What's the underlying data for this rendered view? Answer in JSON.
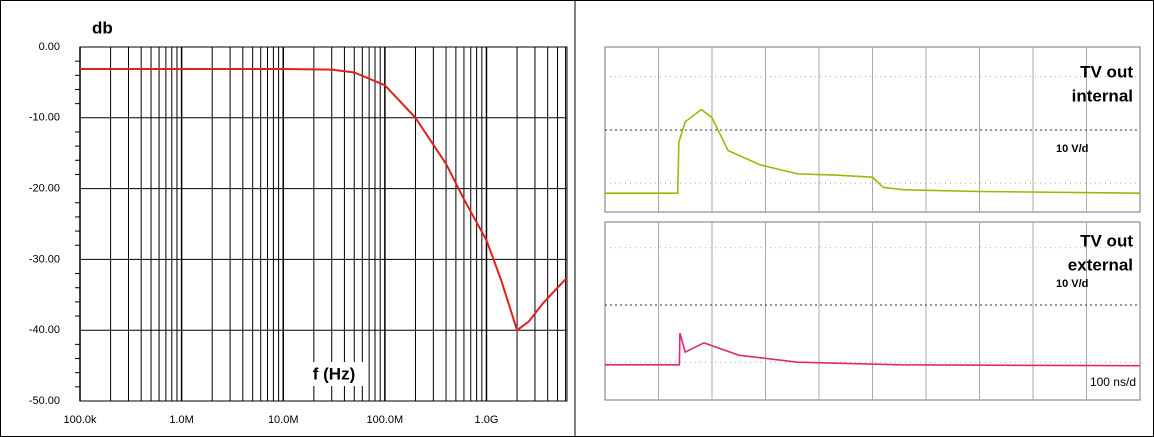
{
  "chart_data": [
    {
      "type": "line",
      "title": "db",
      "x_label": "f (Hz)",
      "xscale": "log",
      "grid": true,
      "x": [
        100000,
        1000000,
        10000000,
        30000000,
        50000000,
        100000000,
        200000000,
        400000000,
        600000000,
        1000000000,
        1400000000,
        2000000000,
        2600000000,
        3600000000,
        5000000000,
        6200000000
      ],
      "series": [
        {
          "color": "#e0201c",
          "values": [
            -3.1,
            -3.1,
            -3.1,
            -3.2,
            -3.6,
            -5.4,
            -10,
            -16.5,
            -21.5,
            -27.3,
            -33,
            -40,
            -38.8,
            -36.2,
            -34,
            -32.6
          ]
        }
      ],
      "xlim": [
        100000,
        6200000000
      ],
      "xticks": [
        {
          "value": 100000,
          "label": "100.0k"
        },
        {
          "value": 1000000,
          "label": "1.0M"
        },
        {
          "value": 10000000,
          "label": "10.0M"
        },
        {
          "value": 100000000,
          "label": "100.0M"
        },
        {
          "value": 1000000000,
          "label": "1.0G"
        }
      ],
      "ylim": [
        -50,
        0
      ],
      "yticks": [
        {
          "value": 0,
          "label": "0.00"
        },
        {
          "value": -10,
          "label": "-10.00"
        },
        {
          "value": -20,
          "label": "-20.00"
        },
        {
          "value": -30,
          "label": "-30.00"
        },
        {
          "value": -40,
          "label": "-40.00"
        },
        {
          "value": -50,
          "label": "-50.00"
        }
      ]
    },
    {
      "type": "line",
      "label": [
        "TV out",
        "internal"
      ],
      "scale": "10 V/d",
      "x": [
        0,
        1.36,
        1.38,
        1.5,
        1.8,
        2.0,
        2.3,
        2.9,
        3.6,
        4.3,
        5.0,
        5.2,
        5.6,
        7,
        10
      ],
      "series": [
        {
          "color": "#a7b300",
          "values": [
            -1.54,
            -1.54,
            -0.3,
            0.2,
            0.5,
            0.3,
            -0.5,
            -0.85,
            -1.07,
            -1.1,
            -1.15,
            -1.4,
            -1.46,
            -1.5,
            -1.54
          ]
        }
      ]
    },
    {
      "type": "line",
      "label": [
        "TV out",
        "external"
      ],
      "scale": "10 V/d",
      "timebase": "100 ns/d",
      "x": [
        0,
        1.39,
        1.4,
        1.5,
        1.85,
        2.5,
        3.6,
        5.5,
        10
      ],
      "series": [
        {
          "color": "#e0287a",
          "values": [
            -1.36,
            -1.36,
            -0.64,
            -1.07,
            -0.86,
            -1.14,
            -1.3,
            -1.36,
            -1.38
          ]
        }
      ]
    }
  ]
}
